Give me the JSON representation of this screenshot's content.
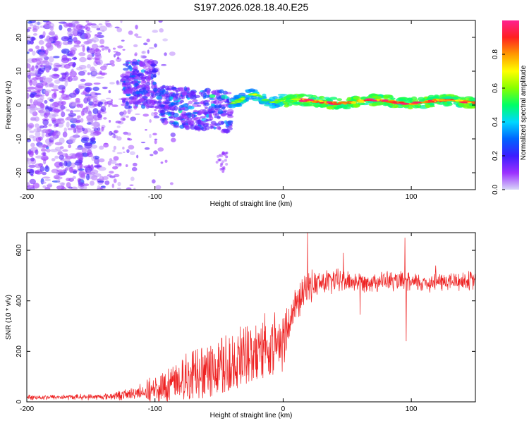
{
  "title": "S197.2026.028.18.40.E25",
  "chart_data": [
    {
      "type": "heatmap",
      "panel": "spectrogram",
      "xlabel": "Height of straight line (km)",
      "ylabel": "Frequency (Hz)",
      "xlim": [
        -200,
        150
      ],
      "ylim": [
        -25,
        25
      ],
      "xticks": [
        -200,
        -100,
        0,
        100
      ],
      "yticks": [
        20,
        10,
        0,
        -10,
        -20
      ],
      "colorbar": {
        "label": "Normalized spectral amplitude",
        "range": [
          0,
          1
        ],
        "ticks": [
          "0.0",
          "0.2",
          "0.4",
          "0.6",
          "0.8"
        ],
        "colors": [
          "#d8d8f8",
          "#9b30ff",
          "#3c1eff",
          "#0064ff",
          "#00d8ff",
          "#00ff66",
          "#88ff00",
          "#ffff00",
          "#ff9900",
          "#ff2020",
          "#ff2090"
        ]
      },
      "regions": [
        {
          "x": [
            -200,
            -140
          ],
          "freq_range": [
            -25,
            25
          ],
          "amplitude": "0.05-0.25 scattered noise"
        },
        {
          "x": [
            -140,
            -90
          ],
          "freq_range": [
            -25,
            25
          ],
          "amplitude": "sparse faint noise"
        },
        {
          "x": [
            -125,
            -100
          ],
          "freq_center": 6,
          "amplitude_max": 0.3
        },
        {
          "x": [
            -100,
            -40
          ],
          "freq_center": 0,
          "amplitude_max": 0.4
        },
        {
          "x": [
            -40,
            0
          ],
          "freq_center": 2,
          "amplitude_max": 0.5
        },
        {
          "x": [
            0,
            150
          ],
          "freq_center": 1,
          "amplitude_max": 1.0
        }
      ]
    },
    {
      "type": "line",
      "panel": "snr",
      "xlabel": "Height of straight line (km)",
      "ylabel": "SNR (10 * v/v)",
      "xlim": [
        -200,
        150
      ],
      "ylim": [
        0,
        670
      ],
      "xticks": [
        -200,
        -100,
        0,
        100
      ],
      "yticks": [
        0,
        200,
        400,
        600
      ],
      "color": "#ee2222",
      "trend": {
        "x": [
          -200,
          -140,
          -120,
          -100,
          -80,
          -60,
          -40,
          -20,
          0,
          10,
          20,
          40,
          60,
          80,
          100,
          120,
          150
        ],
        "y": [
          18,
          20,
          30,
          60,
          110,
          150,
          190,
          230,
          270,
          380,
          460,
          480,
          475,
          480,
          470,
          475,
          480
        ]
      },
      "noise_amplitude": {
        "x": [
          -200,
          -140,
          -110,
          -90,
          -60,
          -30,
          0,
          20,
          60,
          150
        ],
        "y": [
          10,
          12,
          30,
          60,
          90,
          100,
          100,
          60,
          40,
          40
        ]
      },
      "peaks": [
        {
          "x": 19,
          "y": 670
        },
        {
          "x": 47,
          "y": 590
        },
        {
          "x": 60,
          "y": 345
        },
        {
          "x": 95,
          "y": 650
        },
        {
          "x": 96,
          "y": 240
        },
        {
          "x": 119,
          "y": 540
        }
      ]
    }
  ]
}
